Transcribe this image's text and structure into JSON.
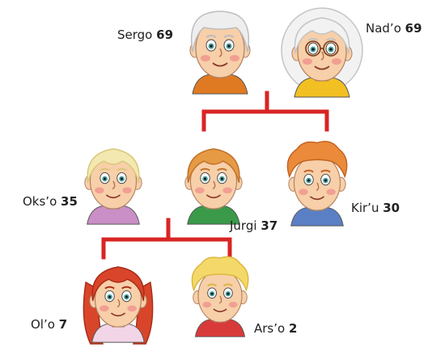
{
  "line_color": "#d92424",
  "people": [
    {
      "id": "sergo",
      "name": "Sergo",
      "age": "69",
      "hair": "#eeeeee",
      "hairShade": "#bdbdbd",
      "shirt": "#e07a22",
      "skin": "#f7cfa9"
    },
    {
      "id": "nado",
      "name": "Nad’o",
      "age": "69",
      "hair": "#f2f2f2",
      "hairShade": "#c4c4c4",
      "shirt": "#f2c022",
      "skin": "#f7cfa9",
      "glasses": true
    },
    {
      "id": "okso",
      "name": "Oks’o",
      "age": "35",
      "hair": "#f3e8b0",
      "hairShade": "#d8c77a",
      "shirt": "#c98fc6",
      "skin": "#f7cfa9"
    },
    {
      "id": "jurgi",
      "name": "Jurgi",
      "age": "37",
      "hair": "#e69a44",
      "hairShade": "#c0702a",
      "shirt": "#3a9a4a",
      "skin": "#f7cfa9"
    },
    {
      "id": "kiru",
      "name": "Kir’u",
      "age": "30",
      "hair": "#ea8a3a",
      "hairShade": "#c2611f",
      "shirt": "#5a7fc4",
      "skin": "#f7cfa9"
    },
    {
      "id": "olo",
      "name": "Ol’o",
      "age": "7",
      "hair": "#d8452a",
      "hairShade": "#a82c18",
      "shirt": "#f2d6e8",
      "skin": "#f7cfa9"
    },
    {
      "id": "arso",
      "name": "Ars’o",
      "age": "2",
      "hair": "#f4d86a",
      "hairShade": "#d9b53a",
      "shirt": "#d83a3a",
      "skin": "#f7cfa9"
    }
  ]
}
